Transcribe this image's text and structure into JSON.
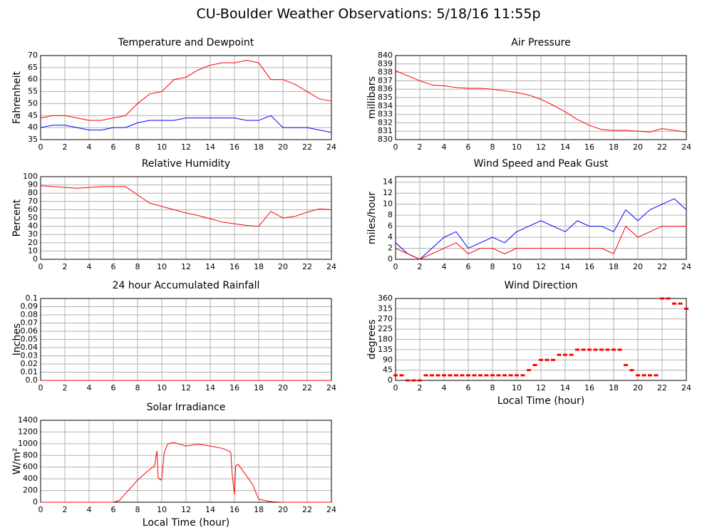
{
  "header": {
    "title": "CU-Boulder Weather Observations: 5/18/16 11:55p"
  },
  "chart_data": [
    {
      "type": "line",
      "title": "Temperature and Dewpoint",
      "ylabel": "Fahrenheit",
      "x": [
        0,
        1,
        2,
        3,
        4,
        5,
        6,
        7,
        8,
        9,
        10,
        11,
        12,
        13,
        14,
        15,
        16,
        17,
        18,
        19,
        20,
        21,
        22,
        23,
        24
      ],
      "series": [
        {
          "color": "#ff0000",
          "values": [
            44,
            45,
            45,
            44,
            43,
            43,
            44,
            45,
            50,
            54,
            55,
            60,
            61,
            64,
            66,
            67,
            67,
            68,
            67,
            60,
            60,
            58,
            55,
            52,
            51
          ]
        },
        {
          "color": "#0000ff",
          "values": [
            40,
            41,
            41,
            40,
            39,
            39,
            40,
            40,
            42,
            43,
            43,
            43,
            44,
            44,
            44,
            44,
            44,
            43,
            43,
            45,
            40,
            40,
            40,
            39,
            38
          ]
        }
      ],
      "xlim": [
        0,
        24
      ],
      "xticks": [
        0,
        2,
        4,
        6,
        8,
        10,
        12,
        14,
        16,
        18,
        20,
        22,
        24
      ],
      "ylim": [
        35,
        70
      ],
      "yticks": [
        35,
        40,
        45,
        50,
        55,
        60,
        65,
        70
      ],
      "grid": true
    },
    {
      "type": "line",
      "title": "Air Pressure",
      "ylabel": "millibars",
      "x": [
        0,
        1,
        2,
        3,
        4,
        5,
        6,
        7,
        8,
        9,
        10,
        11,
        12,
        13,
        14,
        15,
        16,
        17,
        18,
        19,
        20,
        21,
        22,
        23,
        24
      ],
      "series": [
        {
          "color": "#ff0000",
          "values": [
            838.2,
            837.6,
            837,
            836.5,
            836.4,
            836.2,
            836.1,
            836.1,
            836,
            835.8,
            835.6,
            835.3,
            834.8,
            834.1,
            833.3,
            832.4,
            831.7,
            831.2,
            831.1,
            831.1,
            831,
            830.9,
            831.3,
            831.1,
            830.9
          ]
        }
      ],
      "xlim": [
        0,
        24
      ],
      "xticks": [
        0,
        2,
        4,
        6,
        8,
        10,
        12,
        14,
        16,
        18,
        20,
        22,
        24
      ],
      "ylim": [
        830,
        840
      ],
      "yticks": [
        830,
        831,
        832,
        833,
        834,
        835,
        836,
        837,
        838,
        839,
        840
      ],
      "grid": true
    },
    {
      "type": "line",
      "title": "Relative Humidity",
      "ylabel": "Percent",
      "x": [
        0,
        1,
        2,
        3,
        4,
        5,
        6,
        7,
        8,
        9,
        10,
        11,
        12,
        13,
        14,
        15,
        16,
        17,
        18,
        19,
        20,
        21,
        22,
        23,
        24
      ],
      "series": [
        {
          "color": "#ff0000",
          "values": [
            89,
            88,
            87,
            86,
            87,
            88,
            88,
            88,
            78,
            68,
            64,
            60,
            56,
            53,
            49,
            45,
            43,
            41,
            40,
            58,
            50,
            52,
            57,
            61,
            60
          ]
        }
      ],
      "xlim": [
        0,
        24
      ],
      "xticks": [
        0,
        2,
        4,
        6,
        8,
        10,
        12,
        14,
        16,
        18,
        20,
        22,
        24
      ],
      "ylim": [
        0,
        100
      ],
      "yticks": [
        0,
        10,
        20,
        30,
        40,
        50,
        60,
        70,
        80,
        90,
        100
      ],
      "grid": true
    },
    {
      "type": "line",
      "title": "Wind Speed and Peak Gust",
      "ylabel": "miles/hour",
      "x": [
        0,
        1,
        2,
        3,
        4,
        5,
        6,
        7,
        8,
        9,
        10,
        11,
        12,
        13,
        14,
        15,
        16,
        17,
        18,
        19,
        20,
        21,
        22,
        23,
        24
      ],
      "series": [
        {
          "color": "#0000ff",
          "values": [
            3,
            1,
            0,
            2,
            4,
            5,
            2,
            3,
            4,
            3,
            5,
            6,
            7,
            6,
            5,
            7,
            6,
            6,
            5,
            9,
            7,
            9,
            10,
            11,
            9
          ]
        },
        {
          "color": "#ff0000",
          "values": [
            2,
            1,
            0,
            1,
            2,
            3,
            1,
            2,
            2,
            1,
            2,
            2,
            2,
            2,
            2,
            2,
            2,
            2,
            1,
            6,
            4,
            5,
            6,
            6,
            6
          ]
        }
      ],
      "xlim": [
        0,
        24
      ],
      "xticks": [
        0,
        2,
        4,
        6,
        8,
        10,
        12,
        14,
        16,
        18,
        20,
        22,
        24
      ],
      "ylim": [
        0,
        15
      ],
      "yticks": [
        0,
        2,
        4,
        6,
        8,
        10,
        12,
        14
      ],
      "grid": true
    },
    {
      "type": "line",
      "title": "24 hour Accumulated Rainfall",
      "ylabel": "Inches",
      "x": [
        0,
        24
      ],
      "series": [
        {
          "color": "#ff0000",
          "values": [
            0,
            0
          ]
        }
      ],
      "xlim": [
        0,
        24
      ],
      "xticks": [
        0,
        2,
        4,
        6,
        8,
        10,
        12,
        14,
        16,
        18,
        20,
        22,
        24
      ],
      "ylim": [
        0,
        0.1
      ],
      "yticks": [
        {
          "value": 0,
          "label": "0.0"
        },
        0.01,
        0.02,
        0.03,
        0.04,
        0.05,
        0.06,
        0.07,
        0.08,
        0.09,
        0.1
      ],
      "grid": true
    },
    {
      "type": "scatter",
      "title": "Wind Direction",
      "ylabel": "degrees",
      "xlabel": "Local Time (hour)",
      "x": [
        0,
        0.5,
        1,
        1.5,
        2,
        2.5,
        3,
        3.5,
        4,
        4.5,
        5,
        5.5,
        6,
        6.5,
        7,
        7.5,
        8,
        8.5,
        9,
        9.5,
        10,
        10.5,
        11,
        11.5,
        12,
        12.5,
        13,
        13.5,
        14,
        14.5,
        15,
        15.5,
        16,
        16.5,
        17,
        17.5,
        18,
        18.5,
        19,
        19.5,
        20,
        20.5,
        21,
        21.5,
        22,
        22.5,
        23,
        23.5,
        24
      ],
      "series": [
        {
          "color": "#ff0000",
          "values": [
            22.5,
            22.5,
            0,
            0,
            0,
            22.5,
            22.5,
            22.5,
            22.5,
            22.5,
            22.5,
            22.5,
            22.5,
            22.5,
            22.5,
            22.5,
            22.5,
            22.5,
            22.5,
            22.5,
            22.5,
            22.5,
            45,
            67.5,
            90,
            90,
            90,
            112.5,
            112.5,
            112.5,
            135,
            135,
            135,
            135,
            135,
            135,
            135,
            135,
            67.5,
            45,
            22.5,
            22.5,
            22.5,
            22.5,
            360,
            360,
            337.5,
            337.5,
            315
          ]
        }
      ],
      "xlim": [
        0,
        24
      ],
      "xticks": [
        0,
        2,
        4,
        6,
        8,
        10,
        12,
        14,
        16,
        18,
        20,
        22,
        24
      ],
      "ylim": [
        0,
        360
      ],
      "yticks": [
        0,
        45,
        90,
        135,
        180,
        225,
        270,
        315,
        360
      ],
      "grid": true
    },
    {
      "type": "line",
      "title": "Solar Irradiance",
      "ylabel": "W/m²",
      "xlabel": "Local Time (hour)",
      "x": [
        0,
        6,
        6.5,
        7,
        7.5,
        8,
        8.5,
        9,
        9.4,
        9.6,
        9.7,
        9.9,
        10,
        10.2,
        10.5,
        11,
        12,
        13,
        14,
        15,
        15.5,
        15.7,
        15.8,
        16,
        16.1,
        16.3,
        17,
        17.5,
        18,
        19,
        20,
        24
      ],
      "series": [
        {
          "color": "#ff0000",
          "values": [
            0,
            0,
            30,
            150,
            260,
            380,
            470,
            560,
            620,
            880,
            420,
            380,
            400,
            850,
            1000,
            1020,
            960,
            990,
            960,
            920,
            880,
            850,
            500,
            130,
            620,
            650,
            450,
            300,
            50,
            10,
            0,
            0
          ]
        }
      ],
      "xlim": [
        0,
        24
      ],
      "xticks": [
        0,
        2,
        4,
        6,
        8,
        10,
        12,
        14,
        16,
        18,
        20,
        22,
        24
      ],
      "ylim": [
        0,
        1400
      ],
      "yticks": [
        0,
        200,
        400,
        600,
        800,
        1000,
        1200,
        1400
      ],
      "grid": true
    }
  ]
}
